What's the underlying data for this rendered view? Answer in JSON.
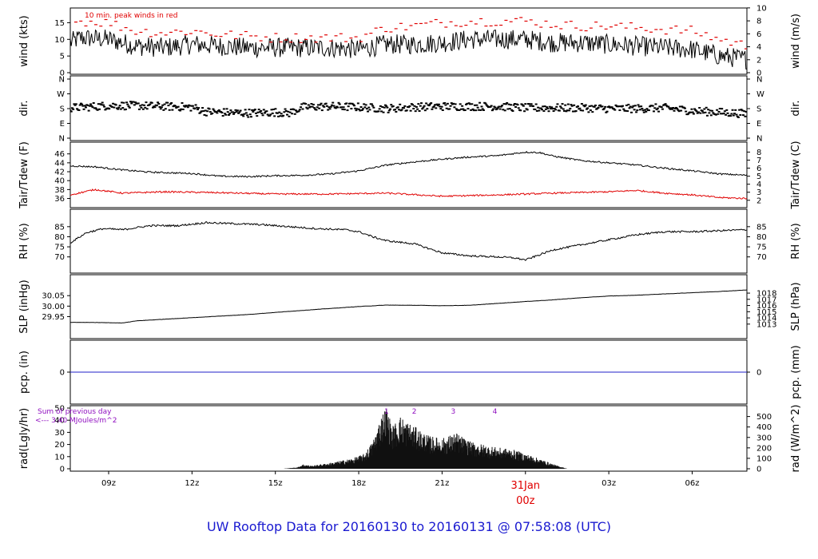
{
  "title": "UW Rooftop Data for 20160130  to  20160131 @ 07:58:08  (UTC)",
  "colors": {
    "text": "#000000",
    "red": "#e00000",
    "blue": "#1a1ad0",
    "purple": "#9010c0",
    "pcp_line": "#2020c8"
  },
  "time_axis": {
    "range_hours": [
      7.62,
      31.97
    ],
    "ticks": [
      {
        "h": 9,
        "label": "09z"
      },
      {
        "h": 12,
        "label": "12z"
      },
      {
        "h": 15,
        "label": "15z"
      },
      {
        "h": 18,
        "label": "18z"
      },
      {
        "h": 21,
        "label": "21z"
      },
      {
        "h": 24,
        "label": "31Jan",
        "label2": "00z",
        "red": true
      },
      {
        "h": 27,
        "label": "03z"
      },
      {
        "h": 30,
        "label": "06z"
      }
    ]
  },
  "chart_data": [
    {
      "type": "line",
      "id": "wind",
      "ylabel": "wind (kts)",
      "ylabel_right": "wind (m/s)",
      "ylim": [
        0,
        17.5
      ],
      "yticks": [
        0,
        5,
        10,
        15
      ],
      "ylim_right": [
        0,
        9
      ],
      "yticks_right": [
        0,
        2,
        4,
        6,
        8,
        10
      ],
      "annotation": "10 min. peak winds in red",
      "series": [
        {
          "role": "wind",
          "x": [
            7.6,
            8.0,
            9.0,
            10.0,
            11.0,
            12.0,
            13.0,
            14.0,
            15.0,
            16.0,
            17.0,
            18.0,
            19.0,
            20.0,
            21.0,
            22.0,
            23.0,
            24.0,
            25.0,
            26.0,
            27.0,
            28.0,
            29.0,
            30.0,
            31.0,
            31.97
          ],
          "values": [
            9,
            10.5,
            10,
            8,
            7.5,
            8.5,
            8,
            7.5,
            7.5,
            7.5,
            7.5,
            7,
            8.5,
            8.5,
            9,
            10,
            10,
            10,
            9,
            9,
            8.5,
            8,
            7.5,
            7,
            5,
            4
          ]
        },
        {
          "role": "peak",
          "x": [
            7.6,
            8.0,
            9.0,
            10.0,
            11.0,
            12.0,
            13.0,
            14.0,
            15.0,
            16.0,
            17.0,
            18.0,
            19.0,
            20.0,
            21.0,
            22.0,
            23.0,
            24.0,
            25.0,
            26.0,
            27.0,
            28.0,
            29.0,
            30.0,
            31.0,
            31.97
          ],
          "values": [
            15,
            15.5,
            15,
            12.5,
            12,
            12.5,
            11.5,
            11,
            10.5,
            10.5,
            10.5,
            10.5,
            13.5,
            14,
            15,
            15.5,
            15.5,
            15.5,
            14.5,
            14,
            14,
            13.5,
            13,
            12.5,
            10,
            8
          ]
        }
      ]
    },
    {
      "type": "scatter",
      "id": "dir",
      "ylabel": "dir.",
      "ylabel_right": "dir.",
      "ylim": [
        0,
        4
      ],
      "yticks": [
        0,
        1,
        2,
        3,
        4
      ],
      "ytick_labels": [
        "N",
        "E",
        "S",
        "W",
        "N"
      ],
      "series": [
        {
          "x": [
            7.6,
            9.0,
            10.0,
            11.0,
            12.0,
            12.5,
            13.0,
            14.0,
            15.0,
            15.5,
            16.0,
            17.0,
            18.0,
            19.0,
            20.0,
            21.0,
            22.0,
            23.0,
            24.0,
            25.0,
            26.0,
            27.0,
            28.0,
            29.0,
            30.0,
            31.0,
            31.97
          ],
          "values": [
            2.05,
            2.2,
            2.2,
            2.15,
            2.1,
            1.8,
            1.75,
            1.7,
            1.75,
            1.7,
            2.1,
            2.15,
            2.1,
            2.0,
            2.1,
            2.15,
            2.15,
            2.15,
            2.05,
            2.05,
            2.05,
            2.0,
            2.0,
            2.05,
            1.85,
            1.75,
            1.65
          ]
        }
      ]
    },
    {
      "type": "line",
      "id": "temp",
      "ylabel": "Tair/Tdew (F)",
      "ylabel_right": "Tair/Tdew (C)",
      "ylim": [
        35.2,
        47.2
      ],
      "yticks": [
        36,
        38,
        40,
        42,
        44,
        46
      ],
      "ylim_right": [
        1.78,
        8.44
      ],
      "yticks_right": [
        2,
        3,
        4,
        5,
        6,
        7,
        8
      ],
      "series": [
        {
          "role": "air",
          "x": [
            7.62,
            8.5,
            9.5,
            10.5,
            12.0,
            13.0,
            14.0,
            15.0,
            16.0,
            17.0,
            18.0,
            19.0,
            20.0,
            21.0,
            22.0,
            23.0,
            24.0,
            24.5,
            25.0,
            26.0,
            27.0,
            28.0,
            29.0,
            30.0,
            31.0,
            31.97
          ],
          "values": [
            43.3,
            43.1,
            42.4,
            41.9,
            41.6,
            41.0,
            40.9,
            41.1,
            41.2,
            41.5,
            42.2,
            43.5,
            44.2,
            44.8,
            45.3,
            45.6,
            46.4,
            46.3,
            45.5,
            44.5,
            44.0,
            43.5,
            42.8,
            42.2,
            41.5,
            41.2
          ]
        },
        {
          "role": "dew",
          "x": [
            7.62,
            8.5,
            9.5,
            11.0,
            13.0,
            15.0,
            17.0,
            19.0,
            21.0,
            23.0,
            25.0,
            27.0,
            28.0,
            29.0,
            30.0,
            31.0,
            31.97
          ],
          "values": [
            36.8,
            38.0,
            37.2,
            37.5,
            37.3,
            37.0,
            37.0,
            37.2,
            36.5,
            36.8,
            37.2,
            37.5,
            37.8,
            37.2,
            36.8,
            36.2,
            36.0
          ]
        }
      ]
    },
    {
      "type": "line",
      "id": "rh",
      "ylabel": "RH (%)",
      "ylabel_right": "RH (%)",
      "ylim": [
        67.5,
        88.5
      ],
      "yticks": [
        70,
        75,
        80,
        85
      ],
      "series": [
        {
          "x": [
            7.62,
            8.2,
            8.8,
            9.5,
            10.5,
            11.5,
            12.5,
            13.5,
            14.5,
            15.5,
            16.5,
            17.5,
            18.0,
            18.5,
            19.0,
            20.0,
            21.0,
            22.0,
            23.0,
            23.6,
            24.0,
            24.5,
            25.0,
            26.0,
            27.0,
            28.0,
            29.0,
            30.0,
            31.0,
            31.97
          ],
          "values": [
            77,
            82,
            84,
            83.5,
            85.5,
            85.5,
            87,
            86.5,
            86,
            85,
            84,
            83.5,
            82.5,
            80,
            78,
            76.5,
            72,
            70.5,
            70,
            69.5,
            68.5,
            71,
            73.5,
            76,
            78.5,
            81,
            82.5,
            82.5,
            83,
            83.5
          ]
        }
      ]
    },
    {
      "type": "line",
      "id": "slp",
      "ylabel": "SLP (inHg)",
      "ylabel_right": "SLP (hPa)",
      "ylim": [
        29.91,
        30.085
      ],
      "yticks": [
        29.95,
        30.0,
        30.05
      ],
      "ytick_labels": [
        "29.95",
        "30.00",
        "30.05"
      ],
      "ylim_right": [
        1012.85,
        1018.78
      ],
      "yticks_right": [
        1013,
        1014,
        1015,
        1016,
        1017,
        1018
      ],
      "series": [
        {
          "x": [
            7.62,
            8.5,
            9.5,
            10.0,
            12.0,
            14.0,
            16.0,
            18.0,
            19.0,
            20.0,
            21.0,
            22.0,
            23.0,
            24.0,
            25.0,
            26.0,
            27.0,
            28.0,
            29.0,
            30.0,
            31.0,
            31.97
          ],
          "values": [
            29.923,
            29.922,
            29.92,
            29.93,
            29.945,
            29.96,
            29.98,
            29.998,
            30.005,
            30.004,
            30.002,
            30.004,
            30.013,
            30.022,
            30.03,
            30.04,
            30.048,
            30.052,
            30.058,
            30.064,
            30.07,
            30.077
          ]
        }
      ]
    },
    {
      "type": "line",
      "id": "pcp",
      "ylabel": "pcp. (in)",
      "ylabel_right": "pcp. (mm)",
      "ylim": [
        -1,
        1
      ],
      "yticks": [
        0
      ],
      "yticks_right": [
        0
      ],
      "series": [
        {
          "x": [
            7.62,
            31.97
          ],
          "values": [
            0,
            0
          ]
        }
      ]
    },
    {
      "type": "area",
      "id": "rad",
      "ylabel": "rad(Lgly/hr)",
      "ylabel_right": "rad (W/m^2)",
      "ylim": [
        0,
        50
      ],
      "yticks": [
        0,
        10,
        20,
        30,
        40,
        50
      ],
      "ylim_right": [
        0,
        581
      ],
      "yticks_right": [
        0,
        100,
        200,
        300,
        400,
        500
      ],
      "note_line1": "Sum of previous day",
      "note_line2": "<--- 3.40 MJoules/m^2",
      "marker_labels": [
        {
          "h": 19.0,
          "label": "1"
        },
        {
          "h": 20.0,
          "label": "2"
        },
        {
          "h": 21.4,
          "label": "3"
        },
        {
          "h": 22.9,
          "label": "4"
        }
      ],
      "series": [
        {
          "x": [
            7.62,
            15.3,
            15.8,
            16.0,
            16.3,
            17.0,
            17.8,
            18.2,
            18.5,
            18.8,
            19.0,
            19.2,
            19.5,
            20.0,
            20.5,
            21.0,
            21.5,
            22.0,
            22.5,
            23.0,
            23.5,
            24.0,
            24.3,
            24.6,
            25.0,
            25.5,
            31.97
          ],
          "values": [
            0,
            0,
            1,
            3,
            2,
            4,
            7,
            10,
            18,
            35,
            42,
            28,
            35,
            28,
            22,
            20,
            24,
            18,
            16,
            14,
            13,
            10,
            8,
            6,
            3,
            0,
            0
          ]
        }
      ]
    }
  ]
}
